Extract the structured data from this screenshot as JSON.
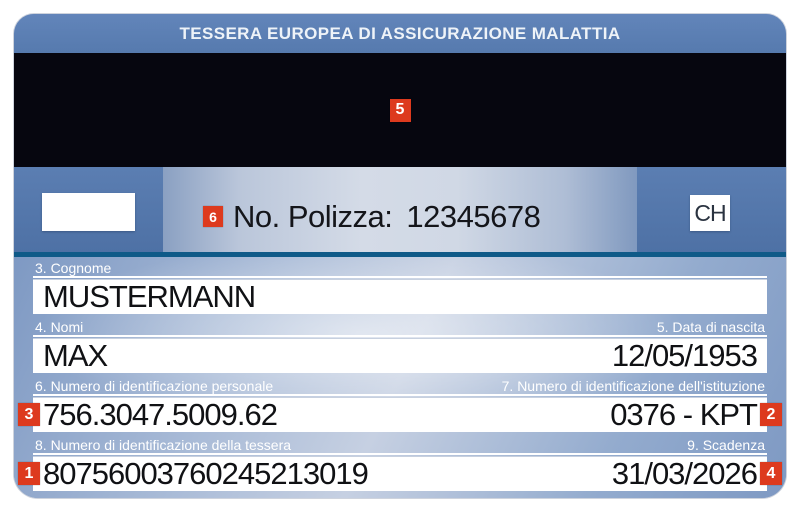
{
  "title": "TESSERA EUROPEA DI ASSICURAZIONE MALATTIA",
  "country_code": "CH",
  "magstripe": {
    "marker": "5"
  },
  "policy": {
    "marker": "6",
    "label": "No. Polizza:",
    "number": "12345678"
  },
  "rows": [
    {
      "left_label": "3. Cognome",
      "left_value": "MUSTERMANN"
    },
    {
      "left_label": "4. Nomi",
      "right_label": "5. Data di nascita",
      "left_value": "MAX",
      "right_value": "12/05/1953"
    },
    {
      "left_label": "6. Numero di identificazione personale",
      "right_label": "7. Numero di identificazione dell'istituzione",
      "left_value": "756.3047.5009.62",
      "right_value": "0376 - KPT",
      "left_marker": "3",
      "right_marker": "2"
    },
    {
      "left_label": "8. Numero di identificazione della tessera",
      "right_label": "9. Scadenza",
      "left_value": "80756003760245213019",
      "right_value": "31/03/2026",
      "left_marker": "1",
      "right_marker": "4"
    }
  ],
  "colors": {
    "marker_red": "#dd3a1e",
    "header_blue": "#5d81b6",
    "band_blue": "#5478ad",
    "separator_blue": "#0f5a88",
    "magstripe_black": "#06060f"
  }
}
